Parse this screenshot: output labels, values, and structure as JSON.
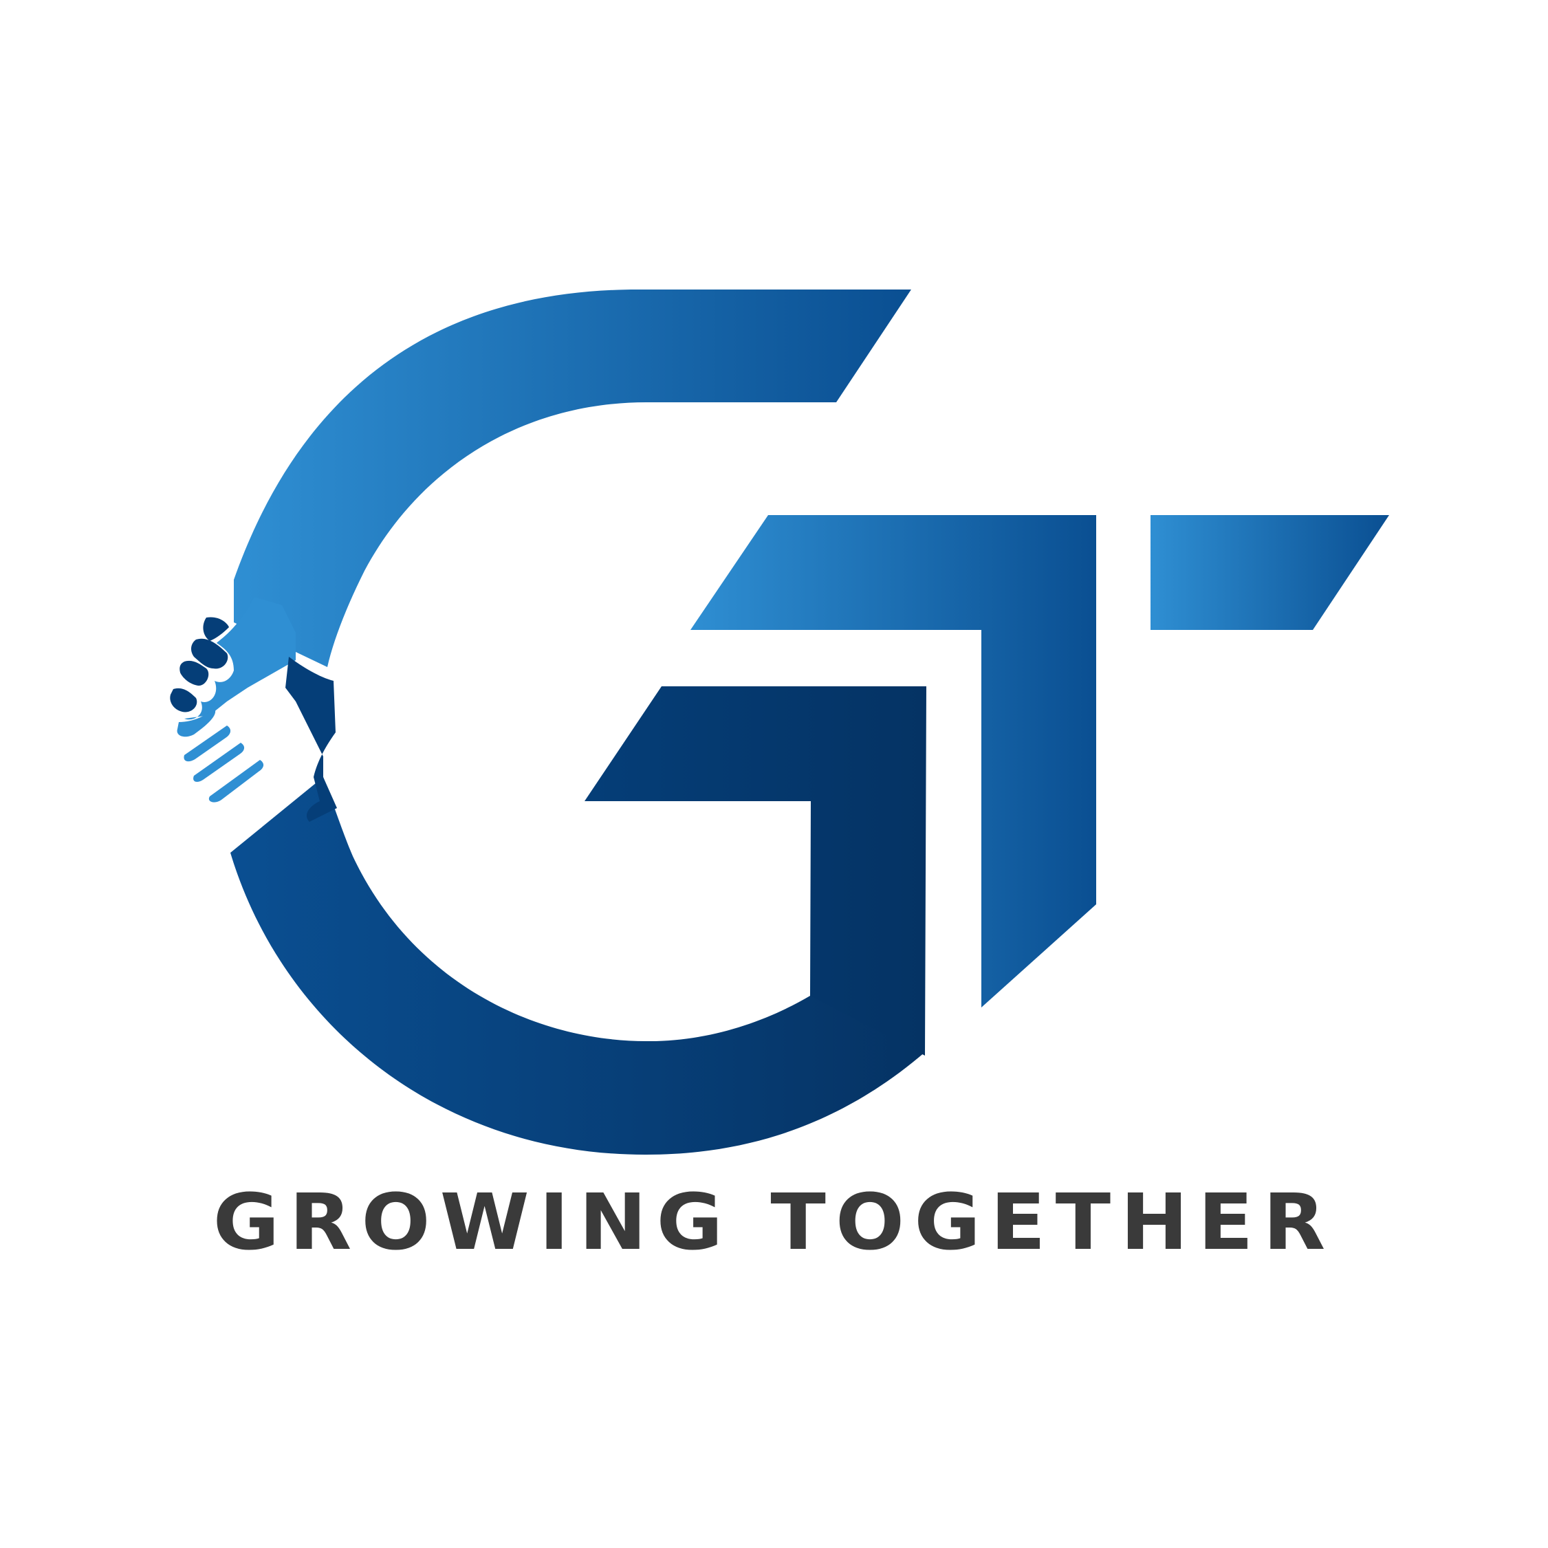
{
  "brand": {
    "tagline": "GROWING TOGETHER",
    "icon": "gt-monogram-handshake-icon",
    "colors": {
      "blue_light": "#2f8fd3",
      "blue_mid": "#1565a8",
      "blue_dark": "#0a4f92",
      "navy": "#053364",
      "text": "#3a3a3a",
      "background": "#ffffff"
    }
  }
}
